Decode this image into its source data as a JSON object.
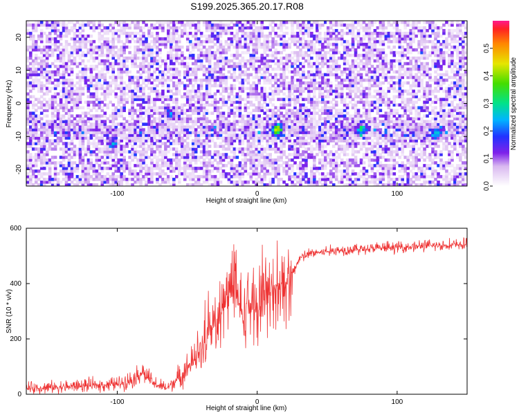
{
  "title": "S199.2025.365.20.17.R08",
  "chart_data": [
    {
      "type": "heatmap",
      "title": "S199.2025.365.20.17.R08",
      "xlabel": "Height of straight line (km)",
      "ylabel": "Frequency (Hz)",
      "xlim": [
        -165,
        150
      ],
      "ylim": [
        -25,
        25
      ],
      "xticks": [
        -100,
        0,
        100
      ],
      "xtick_labels": [
        "-100",
        "0",
        "100"
      ],
      "yticks": [
        -20,
        -10,
        0,
        10,
        20
      ],
      "ytick_labels": [
        "-20",
        "-10",
        "0",
        "10",
        "20"
      ],
      "colorbar": {
        "label": "Normalized spectral amplitude",
        "range": [
          0,
          0.6
        ],
        "ticks": [
          0,
          0.1,
          0.2,
          0.3,
          0.4,
          0.5
        ],
        "tick_labels": [
          "0.0",
          "0.1",
          "0.2",
          "0.3",
          "0.4",
          "0.5"
        ]
      },
      "signal_band_hz": -8,
      "hot_spots": [
        {
          "x": 14,
          "y": -8,
          "value": 0.45
        },
        {
          "x": 74,
          "y": -8,
          "value": 0.25
        },
        {
          "x": 128,
          "y": -9,
          "value": 0.22
        },
        {
          "x": -62,
          "y": -3,
          "value": 0.18
        },
        {
          "x": -103,
          "y": -12,
          "value": 0.15
        }
      ]
    },
    {
      "type": "line",
      "xlabel": "Height of straight line (km)",
      "ylabel": "SNR (10 * v/v)",
      "xlim": [
        -165,
        150
      ],
      "ylim": [
        0,
        600
      ],
      "xticks": [
        -100,
        0,
        100
      ],
      "xtick_labels": [
        "-100",
        "0",
        "100"
      ],
      "yticks": [
        0,
        200,
        400,
        600
      ],
      "ytick_labels": [
        "0",
        "200",
        "400",
        "600"
      ],
      "color": "#ee3333",
      "series": [
        {
          "name": "SNR",
          "x": [
            -165,
            -140,
            -120,
            -100,
            -90,
            -82,
            -75,
            -65,
            -55,
            -45,
            -35,
            -25,
            -18,
            -10,
            -5,
            0,
            5,
            10,
            15,
            20,
            25,
            30,
            40,
            60,
            80,
            100,
            120,
            150
          ],
          "y": [
            20,
            25,
            30,
            35,
            50,
            80,
            40,
            20,
            60,
            120,
            200,
            300,
            380,
            280,
            320,
            300,
            330,
            360,
            390,
            380,
            430,
            490,
            510,
            520,
            525,
            530,
            535,
            540
          ]
        }
      ]
    }
  ]
}
